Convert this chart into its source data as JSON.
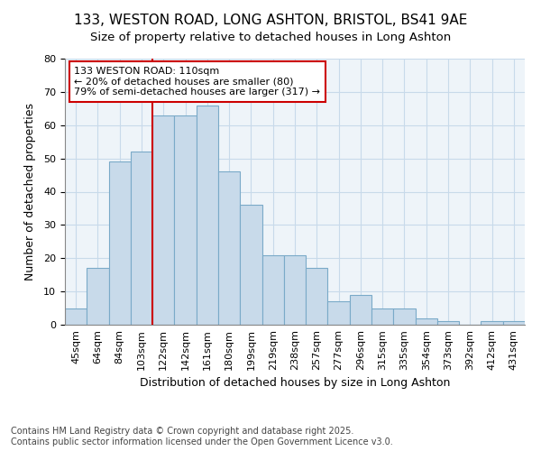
{
  "title_line1": "133, WESTON ROAD, LONG ASHTON, BRISTOL, BS41 9AE",
  "title_line2": "Size of property relative to detached houses in Long Ashton",
  "xlabel": "Distribution of detached houses by size in Long Ashton",
  "ylabel": "Number of detached properties",
  "categories": [
    "45sqm",
    "64sqm",
    "84sqm",
    "103sqm",
    "122sqm",
    "142sqm",
    "161sqm",
    "180sqm",
    "199sqm",
    "219sqm",
    "238sqm",
    "257sqm",
    "277sqm",
    "296sqm",
    "315sqm",
    "335sqm",
    "354sqm",
    "373sqm",
    "392sqm",
    "412sqm",
    "431sqm"
  ],
  "values": [
    5,
    17,
    49,
    52,
    63,
    63,
    66,
    46,
    36,
    21,
    21,
    17,
    7,
    9,
    5,
    5,
    2,
    1,
    0,
    1,
    1
  ],
  "bar_color": "#c8daea",
  "bar_edge_color": "#7aaac8",
  "vline_x_index": 3,
  "vline_color": "#cc0000",
  "annotation_title": "133 WESTON ROAD: 110sqm",
  "annotation_line2": "← 20% of detached houses are smaller (80)",
  "annotation_line3": "79% of semi-detached houses are larger (317) →",
  "annotation_box_facecolor": "#ffffff",
  "annotation_box_edgecolor": "#cc0000",
  "ylim": [
    0,
    80
  ],
  "yticks": [
    0,
    10,
    20,
    30,
    40,
    50,
    60,
    70,
    80
  ],
  "grid_color": "#c8daea",
  "background_color": "#ffffff",
  "plot_bg_color": "#eef4f9",
  "footnote_line1": "Contains HM Land Registry data © Crown copyright and database right 2025.",
  "footnote_line2": "Contains public sector information licensed under the Open Government Licence v3.0.",
  "title_fontsize": 11,
  "subtitle_fontsize": 9.5,
  "axis_label_fontsize": 9,
  "tick_fontsize": 8,
  "annotation_fontsize": 8,
  "footnote_fontsize": 7
}
